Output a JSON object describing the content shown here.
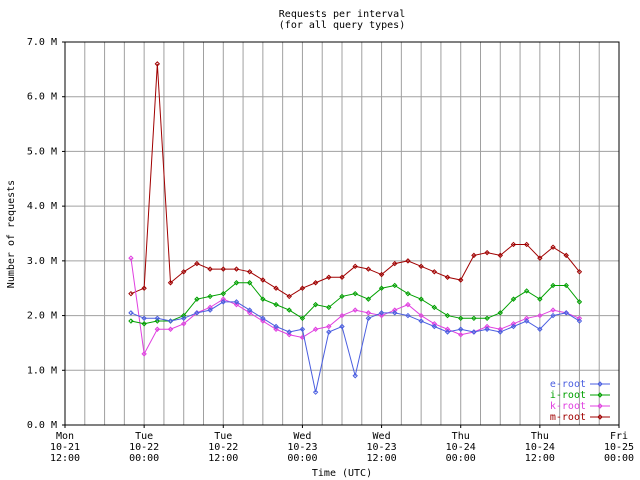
{
  "chart_data": {
    "type": "line",
    "title": "Requests per interval",
    "subtitle": "(for all query types)",
    "x_label": "Time (UTC)",
    "y_label": "Number of requests",
    "legend": "bottom-right",
    "grid": true,
    "xlim": [
      "10-21 12:00",
      "10-25 00:00"
    ],
    "xticks": [
      {
        "value": "10-21 12:00",
        "label": "Mon 10-21 12:00"
      },
      {
        "value": "10-22 00:00",
        "label": "Tue 10-22 00:00"
      },
      {
        "value": "10-22 12:00",
        "label": "Tue 10-22 12:00"
      },
      {
        "value": "10-23 00:00",
        "label": "Wed 10-23 00:00"
      },
      {
        "value": "10-23 12:00",
        "label": "Wed 10-23 12:00"
      },
      {
        "value": "10-24 00:00",
        "label": "Thu 10-24 00:00"
      },
      {
        "value": "10-24 12:00",
        "label": "Thu 10-24 12:00"
      },
      {
        "value": "10-25 00:00",
        "label": "Fri 10-25 00:00"
      }
    ],
    "ylim": [
      0,
      7000000
    ],
    "yticks": [
      {
        "value": 0,
        "label": "0.0 M"
      },
      {
        "value": 1000000,
        "label": "1.0 M"
      },
      {
        "value": 2000000,
        "label": "2.0 M"
      },
      {
        "value": 3000000,
        "label": "3.0 M"
      },
      {
        "value": 4000000,
        "label": "4.0 M"
      },
      {
        "value": 5000000,
        "label": "5.0 M"
      },
      {
        "value": 6000000,
        "label": "6.0 M"
      },
      {
        "value": 7000000,
        "label": "7.0 M"
      }
    ],
    "x": [
      "10-21 22:00",
      "10-22 00:00",
      "10-22 02:00",
      "10-22 04:00",
      "10-22 06:00",
      "10-22 08:00",
      "10-22 10:00",
      "10-22 12:00",
      "10-22 14:00",
      "10-22 16:00",
      "10-22 18:00",
      "10-22 20:00",
      "10-22 22:00",
      "10-23 00:00",
      "10-23 02:00",
      "10-23 04:00",
      "10-23 06:00",
      "10-23 08:00",
      "10-23 10:00",
      "10-23 12:00",
      "10-23 14:00",
      "10-23 16:00",
      "10-23 18:00",
      "10-23 20:00",
      "10-23 22:00",
      "10-24 00:00",
      "10-24 02:00",
      "10-24 04:00",
      "10-24 06:00",
      "10-24 08:00",
      "10-24 10:00",
      "10-24 12:00",
      "10-24 14:00",
      "10-24 16:00",
      "10-24 18:00"
    ],
    "series": [
      {
        "name": "e-root",
        "color": "#4a5ee0",
        "values": [
          2050000,
          1950000,
          1950000,
          1900000,
          1950000,
          2050000,
          2100000,
          2250000,
          2250000,
          2100000,
          1950000,
          1800000,
          1700000,
          1750000,
          600000,
          1700000,
          1800000,
          900000,
          1950000,
          2050000,
          2050000,
          2000000,
          1900000,
          1800000,
          1700000,
          1750000,
          1700000,
          1750000,
          1700000,
          1800000,
          1900000,
          1750000,
          2000000,
          2050000,
          1900000
        ]
      },
      {
        "name": "i-root",
        "color": "#00a000",
        "values": [
          1900000,
          1850000,
          1900000,
          1900000,
          2000000,
          2300000,
          2350000,
          2400000,
          2600000,
          2600000,
          2300000,
          2200000,
          2100000,
          1950000,
          2200000,
          2150000,
          2350000,
          2400000,
          2300000,
          2500000,
          2550000,
          2400000,
          2300000,
          2150000,
          2000000,
          1950000,
          1950000,
          1950000,
          2050000,
          2300000,
          2450000,
          2300000,
          2550000,
          2550000,
          2250000
        ]
      },
      {
        "name": "k-root",
        "color": "#e040e0",
        "values": [
          3050000,
          1300000,
          1750000,
          1750000,
          1850000,
          2050000,
          2150000,
          2300000,
          2200000,
          2050000,
          1900000,
          1750000,
          1650000,
          1600000,
          1750000,
          1800000,
          2000000,
          2100000,
          2050000,
          2000000,
          2100000,
          2200000,
          2000000,
          1850000,
          1750000,
          1650000,
          1700000,
          1800000,
          1750000,
          1850000,
          1950000,
          2000000,
          2100000,
          2050000,
          1950000
        ]
      },
      {
        "name": "m-root",
        "color": "#a00000",
        "values": [
          2400000,
          2500000,
          6600000,
          2600000,
          2800000,
          2950000,
          2850000,
          2850000,
          2850000,
          2800000,
          2650000,
          2500000,
          2350000,
          2500000,
          2600000,
          2700000,
          2700000,
          2900000,
          2850000,
          2750000,
          2950000,
          3000000,
          2900000,
          2800000,
          2700000,
          2650000,
          3100000,
          3150000,
          3100000,
          3300000,
          3300000,
          3050000,
          3250000,
          3100000,
          2800000
        ]
      }
    ]
  }
}
